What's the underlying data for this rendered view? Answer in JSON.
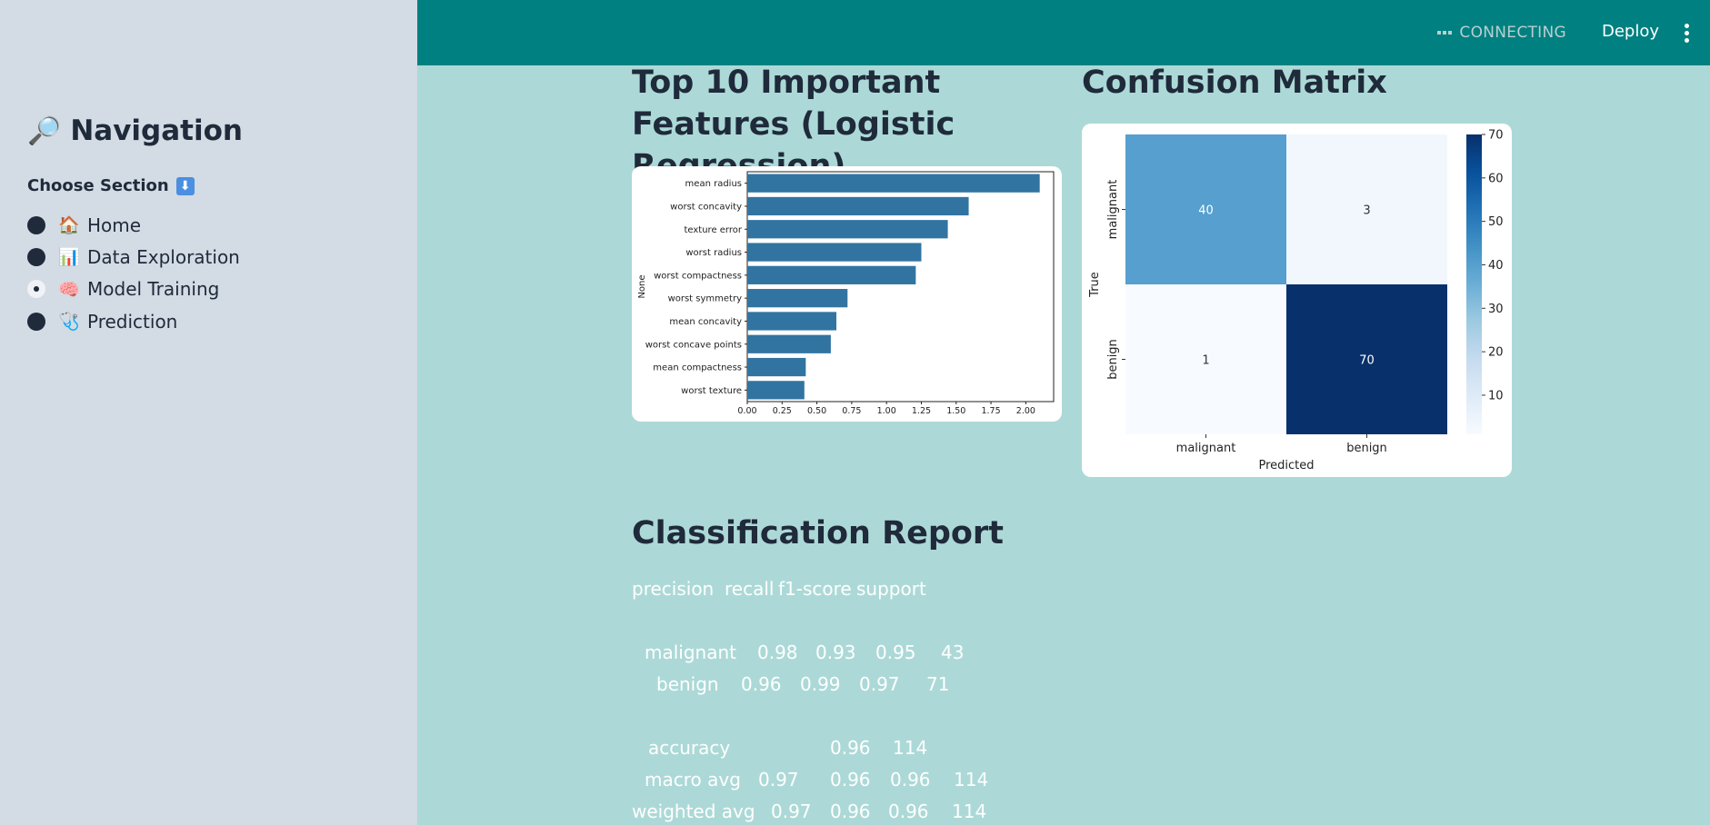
{
  "sidebar": {
    "title": "Navigation",
    "title_icon": "magnifier-icon",
    "choose_label": "Choose Section",
    "items": [
      {
        "emoji": "🏠",
        "label": "Home",
        "selected": false
      },
      {
        "emoji": "📊",
        "label": "Data Exploration",
        "selected": false
      },
      {
        "emoji": "🧠",
        "label": "Model Training",
        "selected": true
      },
      {
        "emoji": "🩺",
        "label": "Prediction",
        "selected": false
      }
    ]
  },
  "header": {
    "status": "CONNECTING",
    "deploy_label": "Deploy"
  },
  "main": {
    "features_title": "Top 10 Important Features (Logistic Regression)",
    "cm_title": "Confusion Matrix",
    "report_title": "Classification Report"
  },
  "chart_data": [
    {
      "type": "bar",
      "orientation": "horizontal",
      "categories": [
        "mean radius",
        "worst concavity",
        "texture error",
        "worst radius",
        "worst compactness",
        "worst symmetry",
        "mean concavity",
        "worst concave points",
        "mean compactness",
        "worst texture"
      ],
      "values": [
        2.1,
        1.59,
        1.44,
        1.25,
        1.21,
        0.72,
        0.64,
        0.6,
        0.42,
        0.41
      ],
      "ylabel": "None",
      "xlim": [
        0,
        2.2
      ],
      "xticks": [
        "0.00",
        "0.25",
        "0.50",
        "0.75",
        "1.00",
        "1.25",
        "1.50",
        "1.75",
        "2.00"
      ],
      "bar_color": "#3274a1"
    },
    {
      "type": "heatmap",
      "rows": [
        "malignant",
        "benign"
      ],
      "columns": [
        "malignant",
        "benign"
      ],
      "values": [
        [
          40,
          3
        ],
        [
          1,
          70
        ]
      ],
      "xlabel": "Predicted",
      "ylabel": "True",
      "colorbar_ticks": [
        "10",
        "20",
        "30",
        "40",
        "50",
        "60",
        "70"
      ],
      "colorbar_range": [
        1,
        70
      ],
      "colormap": "Blues"
    }
  ],
  "report": {
    "header": [
      "precision",
      "recall",
      "f1-score",
      "support"
    ],
    "rows": [
      {
        "label": "malignant",
        "values": [
          "0.98",
          "0.93",
          "0.95",
          "43"
        ]
      },
      {
        "label": "benign",
        "values": [
          "0.96",
          "0.99",
          "0.97",
          "71"
        ]
      },
      {
        "label": "accuracy",
        "values": [
          "",
          "",
          "0.96",
          "114"
        ]
      },
      {
        "label": "macro avg",
        "values": [
          "0.97",
          "0.96",
          "0.96",
          "114"
        ]
      },
      {
        "label": "weighted avg",
        "values": [
          "0.97",
          "0.96",
          "0.96",
          "114"
        ]
      }
    ]
  }
}
